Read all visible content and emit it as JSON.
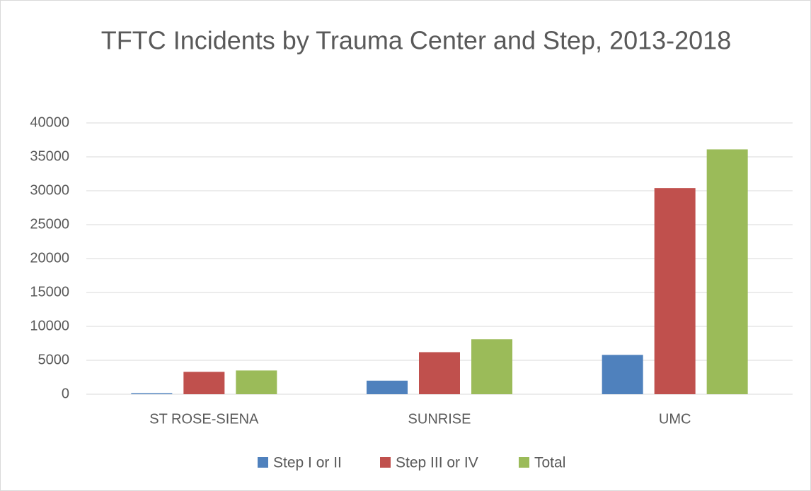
{
  "chart_data": {
    "type": "bar",
    "title": "TFTC Incidents by Trauma Center and Step, 2013-2018",
    "categories": [
      "ST ROSE-SIENA",
      "SUNRISE",
      "UMC"
    ],
    "series": [
      {
        "name": "Step I or II",
        "color": "#4f81bd",
        "values": [
          150,
          2000,
          5800
        ]
      },
      {
        "name": "Step III or IV",
        "color": "#c0504d",
        "values": [
          3300,
          6200,
          30400
        ]
      },
      {
        "name": "Total",
        "color": "#9bbb59",
        "values": [
          3500,
          8100,
          36100
        ]
      }
    ],
    "ylim": [
      0,
      40000
    ],
    "yticks": [
      0,
      5000,
      10000,
      15000,
      20000,
      25000,
      30000,
      35000,
      40000
    ],
    "grid": true,
    "legend": "bottom"
  }
}
